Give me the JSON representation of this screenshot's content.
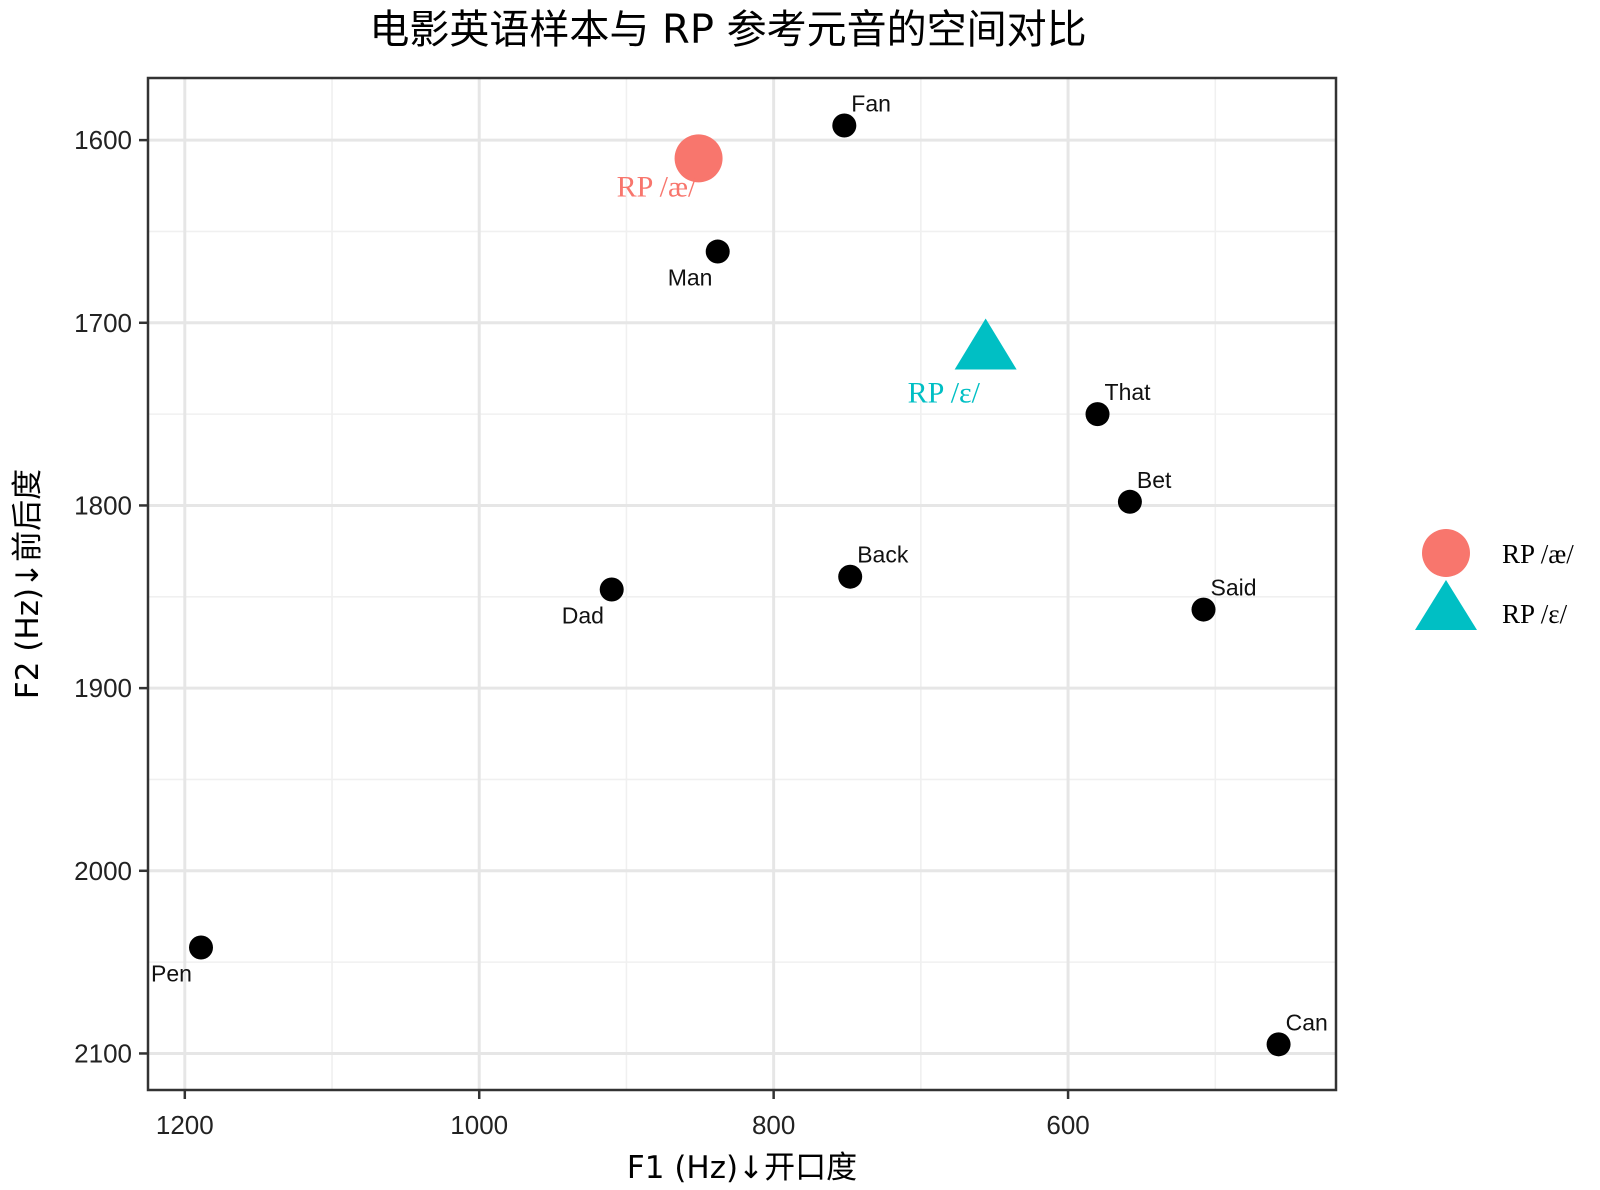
{
  "chart_data": {
    "type": "scatter",
    "title": "电影英语样本与 RP 参考元音的空间对比",
    "xlabel": "F1 (Hz)↓开口度",
    "ylabel": "F2 (Hz)↓前后度",
    "x_reversed": true,
    "y_reversed": true,
    "xlim": [
      1225,
      418
    ],
    "ylim": [
      1566,
      2120
    ],
    "x_ticks": [
      1200,
      1000,
      800,
      600
    ],
    "x_minor_ticks": [
      1100,
      900,
      700,
      500
    ],
    "y_ticks": [
      1600,
      1700,
      1800,
      1900,
      2000,
      2100
    ],
    "y_minor_ticks": [
      1650,
      1750,
      1850,
      1950,
      2050
    ],
    "grid": true,
    "legend_position": "right",
    "samples": {
      "color": "#000000",
      "points": [
        {
          "label": "Fan",
          "x": 752,
          "y": 1592,
          "label_pos": "above-right"
        },
        {
          "label": "Man",
          "x": 838,
          "y": 1661,
          "label_pos": "below-left"
        },
        {
          "label": "That",
          "x": 580,
          "y": 1750,
          "label_pos": "above-right"
        },
        {
          "label": "Bet",
          "x": 558,
          "y": 1798,
          "label_pos": "above-right"
        },
        {
          "label": "Back",
          "x": 748,
          "y": 1839,
          "label_pos": "above-right"
        },
        {
          "label": "Dad",
          "x": 910,
          "y": 1846,
          "label_pos": "below-left"
        },
        {
          "label": "Said",
          "x": 508,
          "y": 1857,
          "label_pos": "above-right"
        },
        {
          "label": "Pen",
          "x": 1189,
          "y": 2042,
          "label_pos": "below-left"
        },
        {
          "label": "Can",
          "x": 457,
          "y": 2095,
          "label_pos": "above-right"
        }
      ]
    },
    "references": [
      {
        "name": "RP /æ/",
        "x": 851,
        "y": 1610,
        "shape": "circle",
        "color": "#F8766D"
      },
      {
        "name": "RP /ɛ/",
        "x": 656,
        "y": 1713,
        "shape": "triangle",
        "color": "#00BFC4"
      }
    ]
  }
}
